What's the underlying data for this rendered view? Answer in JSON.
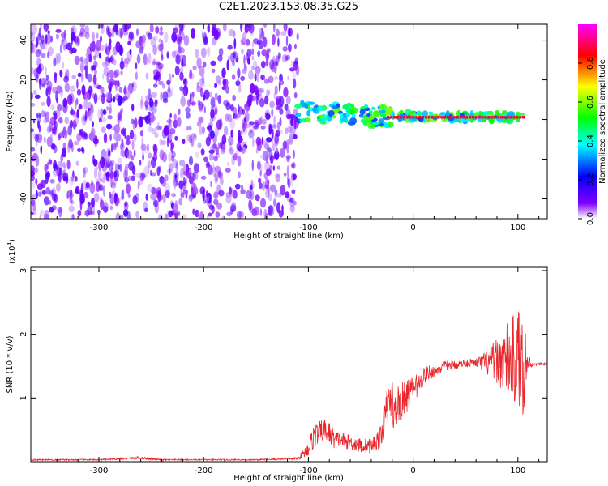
{
  "title": "C2E1.2023.153.08.35.G25",
  "chart_data": [
    {
      "type": "heatmap",
      "xlabel": "Height of straight line (km)",
      "ylabel": "Frequency (Hz)",
      "xlim": [
        -365,
        128
      ],
      "ylim": [
        -50,
        48
      ],
      "x_ticks": [
        -300,
        -200,
        -100,
        0,
        100
      ],
      "x_tick_labels": [
        "-300",
        "-200",
        "-100",
        "0",
        "100"
      ],
      "y_ticks": [
        -40,
        -20,
        0,
        20,
        40
      ],
      "y_tick_labels": [
        "-40",
        "-20",
        "0",
        "20",
        "40"
      ],
      "colorbar": {
        "label": "Normalized spectral amplitude",
        "range": [
          0,
          1
        ],
        "ticks": [
          0,
          0.2,
          0.4,
          0.6,
          0.8
        ],
        "tick_labels": [
          "0.0",
          "0.2",
          "0.4",
          "0.6",
          "0.8"
        ],
        "colormap": [
          "#ffffff",
          "#7f00ff",
          "#0000ff",
          "#00ffff",
          "#00ff00",
          "#ffff00",
          "#ff0000",
          "#ff00ff"
        ]
      },
      "regions": [
        {
          "description": "scattered low amplitude noise",
          "x": [
            -365,
            -110
          ],
          "y": [
            -50,
            48
          ],
          "amplitude": 0.1
        },
        {
          "description": "main echo band",
          "x": [
            -110,
            105
          ],
          "y": [
            -5,
            10
          ],
          "amplitude": 0.6
        },
        {
          "description": "central strong line",
          "x": [
            -25,
            105
          ],
          "y": [
            0,
            2
          ],
          "amplitude": 0.9
        }
      ]
    },
    {
      "type": "line",
      "xlabel": "Height of straight line (km)",
      "ylabel": "SNR (10 * v/v)",
      "multiplier": "(x10",
      "multiplier_exp": "4",
      "multiplier_close": ")",
      "xlim": [
        -365,
        128
      ],
      "ylim": [
        0,
        3.05
      ],
      "x_ticks": [
        -300,
        -200,
        -100,
        0,
        100
      ],
      "x_tick_labels": [
        "-300",
        "-200",
        "-100",
        "0",
        "100"
      ],
      "y_ticks": [
        1,
        2,
        3
      ],
      "y_tick_labels": [
        "1",
        "2",
        "3"
      ],
      "series": [
        {
          "color": "#e8262b",
          "x": [
            -365,
            -300,
            -260,
            -240,
            -200,
            -150,
            -110,
            -100,
            -95,
            -90,
            -85,
            -80,
            -75,
            -70,
            -60,
            -50,
            -40,
            -30,
            -25,
            -22,
            -20,
            -18,
            -15,
            -10,
            -5,
            0,
            5,
            10,
            15,
            20,
            30,
            40,
            50,
            60,
            70,
            80,
            90,
            100,
            105,
            110,
            115,
            120,
            128
          ],
          "y": [
            0.03,
            0.03,
            0.06,
            0.03,
            0.03,
            0.03,
            0.05,
            0.2,
            0.4,
            0.45,
            0.5,
            0.45,
            0.35,
            0.35,
            0.3,
            0.25,
            0.25,
            0.4,
            0.85,
            0.95,
            1.0,
            0.7,
            0.9,
            0.95,
            1.05,
            1.15,
            1.2,
            1.35,
            1.4,
            1.42,
            1.5,
            1.52,
            1.55,
            1.55,
            1.55,
            1.58,
            1.6,
            1.6,
            1.58,
            1.55,
            1.53,
            1.53,
            1.53
          ],
          "noise_amplitude": [
            0.01,
            0.01,
            0.02,
            0.01,
            0.01,
            0.01,
            0.02,
            0.12,
            0.2,
            0.18,
            0.18,
            0.18,
            0.15,
            0.12,
            0.12,
            0.12,
            0.12,
            0.18,
            0.3,
            0.35,
            0.35,
            0.3,
            0.32,
            0.3,
            0.25,
            0.2,
            0.18,
            0.15,
            0.12,
            0.1,
            0.08,
            0.07,
            0.06,
            0.06,
            0.2,
            0.35,
            0.6,
            0.8,
            0.9,
            0.15,
            0.02,
            0.02,
            0.02
          ]
        }
      ]
    }
  ]
}
